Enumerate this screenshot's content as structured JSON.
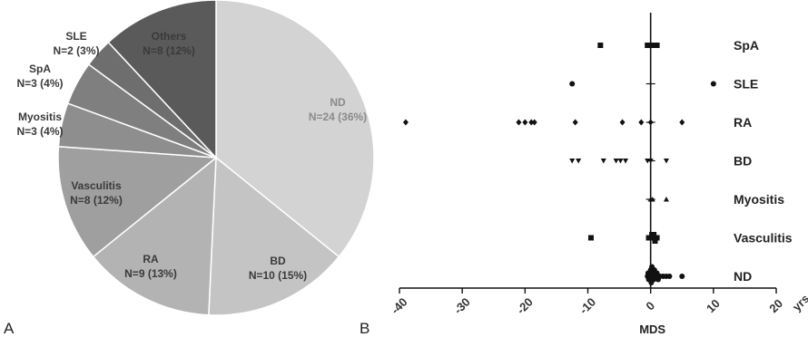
{
  "panel_labels": {
    "a": "A",
    "b": "B"
  },
  "chart_data": [
    {
      "type": "pie",
      "panel": "A",
      "slices": [
        {
          "name": "ND",
          "label": "N=24 (36%)",
          "value": 24,
          "percent": 36,
          "color": "#d3d3d3"
        },
        {
          "name": "BD",
          "label": "N=10 (15%)",
          "value": 10,
          "percent": 15,
          "color": "#c4c4c4"
        },
        {
          "name": "RA",
          "label": "N=9 (13%)",
          "value": 9,
          "percent": 13,
          "color": "#b3b3b3"
        },
        {
          "name": "Vasculitis",
          "label": "N=8 (12%)",
          "value": 8,
          "percent": 12,
          "color": "#9f9f9f"
        },
        {
          "name": "Myositis",
          "label": "N=3 (4%)",
          "value": 3,
          "percent": 4,
          "color": "#8e8e8e"
        },
        {
          "name": "SpA",
          "label": "N=3 (4%)",
          "value": 3,
          "percent": 4,
          "color": "#7f7f7f"
        },
        {
          "name": "SLE",
          "label": "N=2 (3%)",
          "value": 2,
          "percent": 3,
          "color": "#6e6e6e"
        },
        {
          "name": "Others",
          "label": "N=8 (12%)",
          "value": 8,
          "percent": 12,
          "color": "#5a5a5a"
        }
      ]
    },
    {
      "type": "scatter",
      "panel": "B",
      "xlabel": "MDS",
      "x_unit": "yrs",
      "xlim": [
        -40,
        20
      ],
      "xticks": [
        -40,
        -30,
        -20,
        -10,
        0,
        10,
        20
      ],
      "categories": [
        "SpA",
        "SLE",
        "RA",
        "BD",
        "Myositis",
        "Vasculitis",
        "ND"
      ],
      "series": [
        {
          "name": "SpA",
          "marker": "square",
          "x": [
            -8,
            -0.5,
            0.3,
            1
          ]
        },
        {
          "name": "SLE",
          "marker": "circle",
          "x": [
            -12.5,
            10
          ]
        },
        {
          "name": "RA",
          "marker": "diamond",
          "x": [
            -39,
            -21,
            -20,
            -19,
            -18.5,
            -12,
            -4.5,
            -1.5,
            0,
            5
          ]
        },
        {
          "name": "BD",
          "marker": "triangle-down",
          "x": [
            -12.5,
            -11.5,
            -7.5,
            -5.5,
            -4.8,
            -4,
            -0.5,
            0,
            2.5
          ]
        },
        {
          "name": "Myositis",
          "marker": "triangle-up",
          "x": [
            0,
            0.3,
            2.5
          ]
        },
        {
          "name": "Vasculitis",
          "marker": "square",
          "x": [
            -9.5,
            -0.3,
            0,
            0.2,
            0.4,
            0.5,
            0.7,
            1
          ]
        },
        {
          "name": "ND",
          "marker": "circle",
          "x": [
            -0.5,
            -0.4,
            -0.3,
            -0.2,
            -0.1,
            0,
            0,
            0.1,
            0.2,
            0.3,
            0.4,
            0.5,
            0.6,
            0.8,
            1,
            1.2,
            1.5,
            2,
            2.5,
            3,
            5
          ]
        }
      ]
    }
  ]
}
